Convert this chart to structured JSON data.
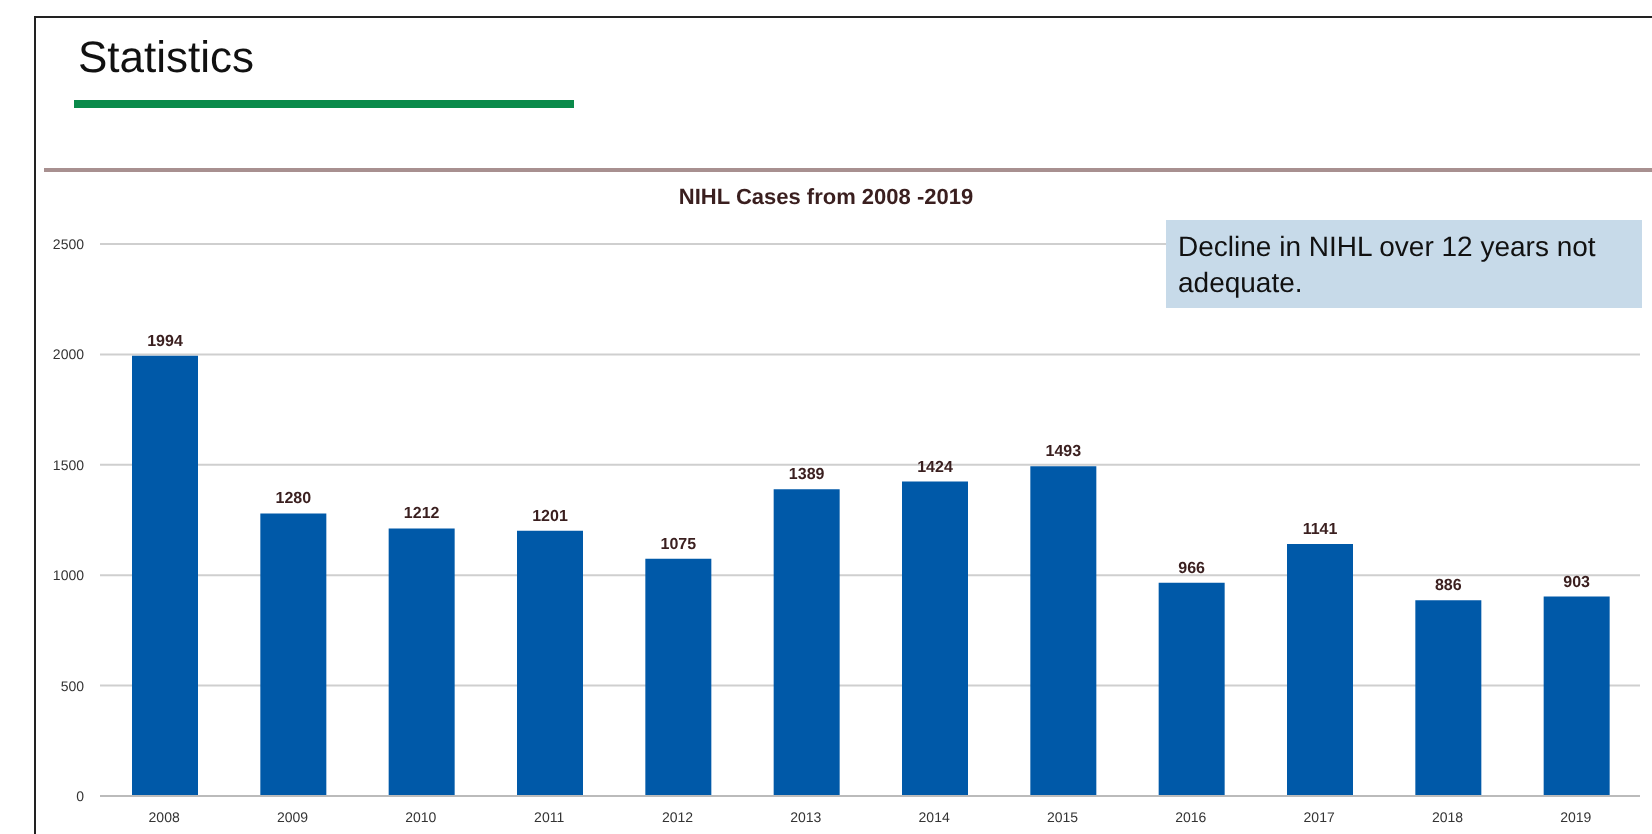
{
  "chart_data": {
    "type": "bar",
    "title": "Statistics",
    "subtitle": "NIHL Cases from 2008 -2019",
    "categories": [
      "2008",
      "2009",
      "2010",
      "2011",
      "2012",
      "2013",
      "2014",
      "2015",
      "2016",
      "2017",
      "2018",
      "2019"
    ],
    "values": [
      1994,
      1280,
      1212,
      1201,
      1075,
      1389,
      1424,
      1493,
      966,
      1141,
      886,
      903
    ],
    "color": "#0059a8",
    "ylim": [
      0,
      2500
    ],
    "yticks": [
      0,
      500,
      1000,
      1500,
      2000,
      2500
    ],
    "grid": "y",
    "data_labels": true,
    "annotations": [
      "Decline in NIHL over 12 years not adequate."
    ]
  }
}
